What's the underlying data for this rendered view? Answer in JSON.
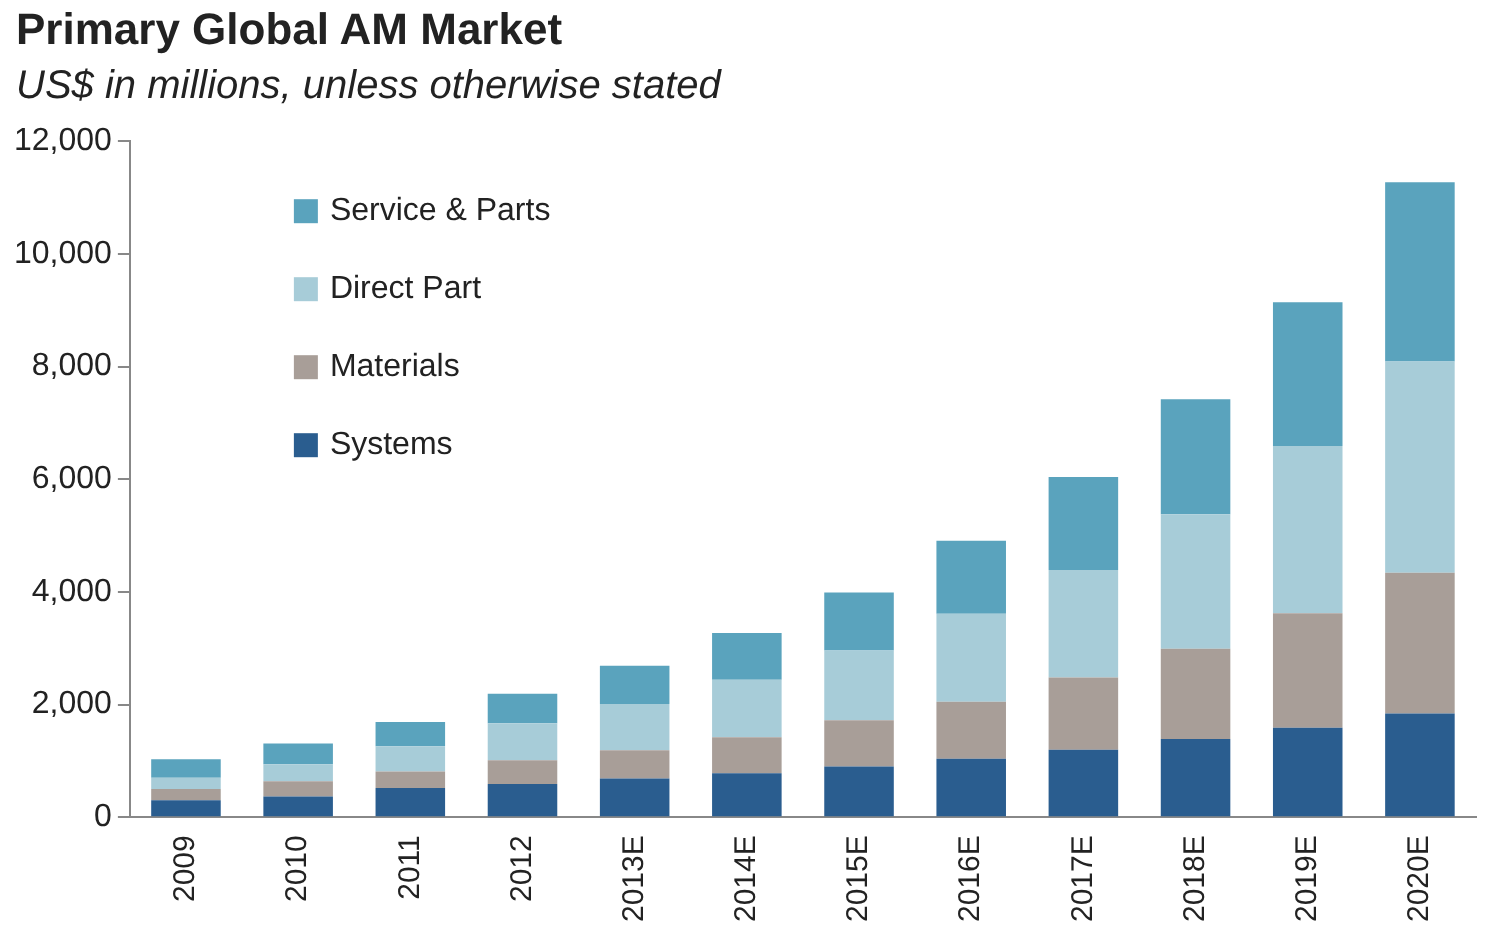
{
  "chart_data": {
    "type": "bar",
    "title": "Primary Global AM Market",
    "subtitle": "US$ in millions, unless otherwise stated",
    "categories": [
      "2009",
      "2010",
      "2011",
      "2012",
      "2013E",
      "2014E",
      "2015E",
      "2016E",
      "2017E",
      "2018E",
      "2019E",
      "2020E"
    ],
    "stacked": true,
    "legend": "top left",
    "grid": false,
    "ylim": [
      0,
      12000
    ],
    "yticks": [
      {
        "value": 0,
        "label": "0"
      },
      {
        "value": 2000,
        "label": "2,000"
      },
      {
        "value": 4000,
        "label": "4,000"
      },
      {
        "value": 6000,
        "label": "6,000"
      },
      {
        "value": 8000,
        "label": "8,000"
      },
      {
        "value": 10000,
        "label": "10,000"
      },
      {
        "value": 12000,
        "label": "12,000"
      }
    ],
    "series": [
      {
        "name": "Systems",
        "color": "#2a5d8f",
        "values": [
          300,
          370,
          520,
          590,
          690,
          780,
          900,
          1040,
          1200,
          1390,
          1590,
          1840
        ]
      },
      {
        "name": "Materials",
        "color": "#a89e98",
        "values": [
          200,
          270,
          290,
          420,
          500,
          640,
          820,
          1010,
          1280,
          1600,
          2030,
          2500
        ]
      },
      {
        "name": "Direct Part",
        "color": "#a7ccd8",
        "values": [
          200,
          300,
          450,
          660,
          820,
          1020,
          1240,
          1560,
          1910,
          2390,
          2970,
          3750
        ]
      },
      {
        "name": "Service & Parts",
        "color": "#5aa3bd",
        "values": [
          330,
          370,
          430,
          520,
          680,
          830,
          1030,
          1300,
          1650,
          2040,
          2550,
          3180
        ]
      }
    ]
  }
}
